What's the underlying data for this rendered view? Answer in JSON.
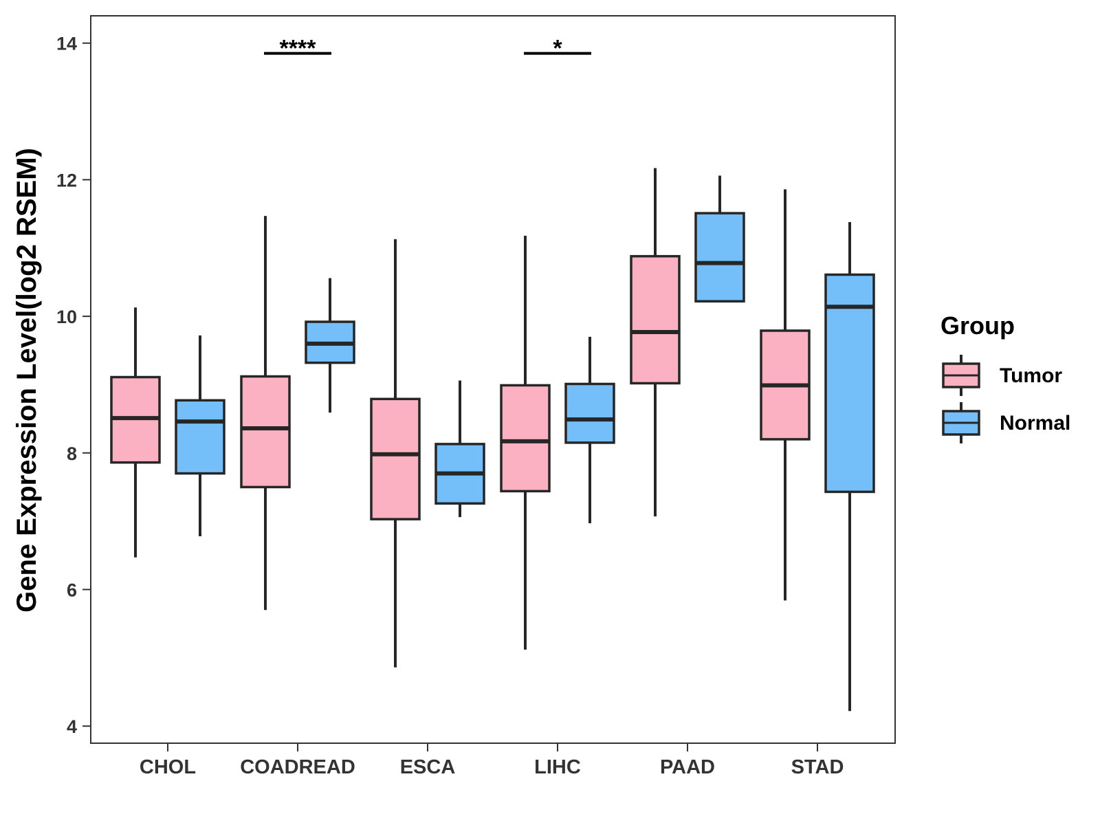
{
  "chart_data": {
    "type": "boxplot",
    "title": "",
    "xlabel": "",
    "ylabel": "Gene Expression Level(log2 RSEM)",
    "ylim": [
      3.75,
      14.4
    ],
    "yticks": [
      4,
      6,
      8,
      10,
      12,
      14
    ],
    "ytick_labels": [
      "4",
      "6",
      "8",
      "10",
      "12",
      "14"
    ],
    "categories": [
      "CHOL",
      "COADREAD",
      "ESCA",
      "LIHC",
      "PAAD",
      "STAD"
    ],
    "legend": {
      "title": "Group",
      "position": "right",
      "entries": [
        "Tumor",
        "Normal"
      ]
    },
    "colors": {
      "Tumor": "#fbb1c1",
      "Normal": "#74bff9",
      "outline": "#262626"
    },
    "series": [
      {
        "name": "Tumor",
        "boxes": [
          {
            "min": 6.47,
            "q1": 7.86,
            "median": 8.51,
            "q3": 9.11,
            "max": 10.13
          },
          {
            "min": 5.7,
            "q1": 7.5,
            "median": 8.36,
            "q3": 9.12,
            "max": 11.47
          },
          {
            "min": 4.86,
            "q1": 7.03,
            "median": 7.98,
            "q3": 8.79,
            "max": 11.13
          },
          {
            "min": 5.12,
            "q1": 7.44,
            "median": 8.17,
            "q3": 8.99,
            "max": 11.18
          },
          {
            "min": 7.07,
            "q1": 9.02,
            "median": 9.77,
            "q3": 10.88,
            "max": 12.17
          },
          {
            "min": 5.84,
            "q1": 8.2,
            "median": 8.99,
            "q3": 9.79,
            "max": 11.86
          }
        ]
      },
      {
        "name": "Normal",
        "boxes": [
          {
            "min": 6.78,
            "q1": 7.7,
            "median": 8.46,
            "q3": 8.77,
            "max": 9.72
          },
          {
            "min": 8.59,
            "q1": 9.32,
            "median": 9.6,
            "q3": 9.92,
            "max": 10.56
          },
          {
            "min": 7.06,
            "q1": 7.26,
            "median": 7.7,
            "q3": 8.13,
            "max": 9.06
          },
          {
            "min": 6.97,
            "q1": 8.15,
            "median": 8.49,
            "q3": 9.01,
            "max": 9.7
          },
          {
            "min": 10.22,
            "q1": 10.22,
            "median": 10.78,
            "q3": 11.51,
            "max": 12.06
          },
          {
            "min": 4.22,
            "q1": 7.43,
            "median": 10.14,
            "q3": 10.61,
            "max": 11.38
          }
        ]
      }
    ],
    "significance": [
      {
        "category": "COADREAD",
        "label": "****",
        "y": 13.85
      },
      {
        "category": "LIHC",
        "label": "*",
        "y": 13.85
      }
    ]
  }
}
